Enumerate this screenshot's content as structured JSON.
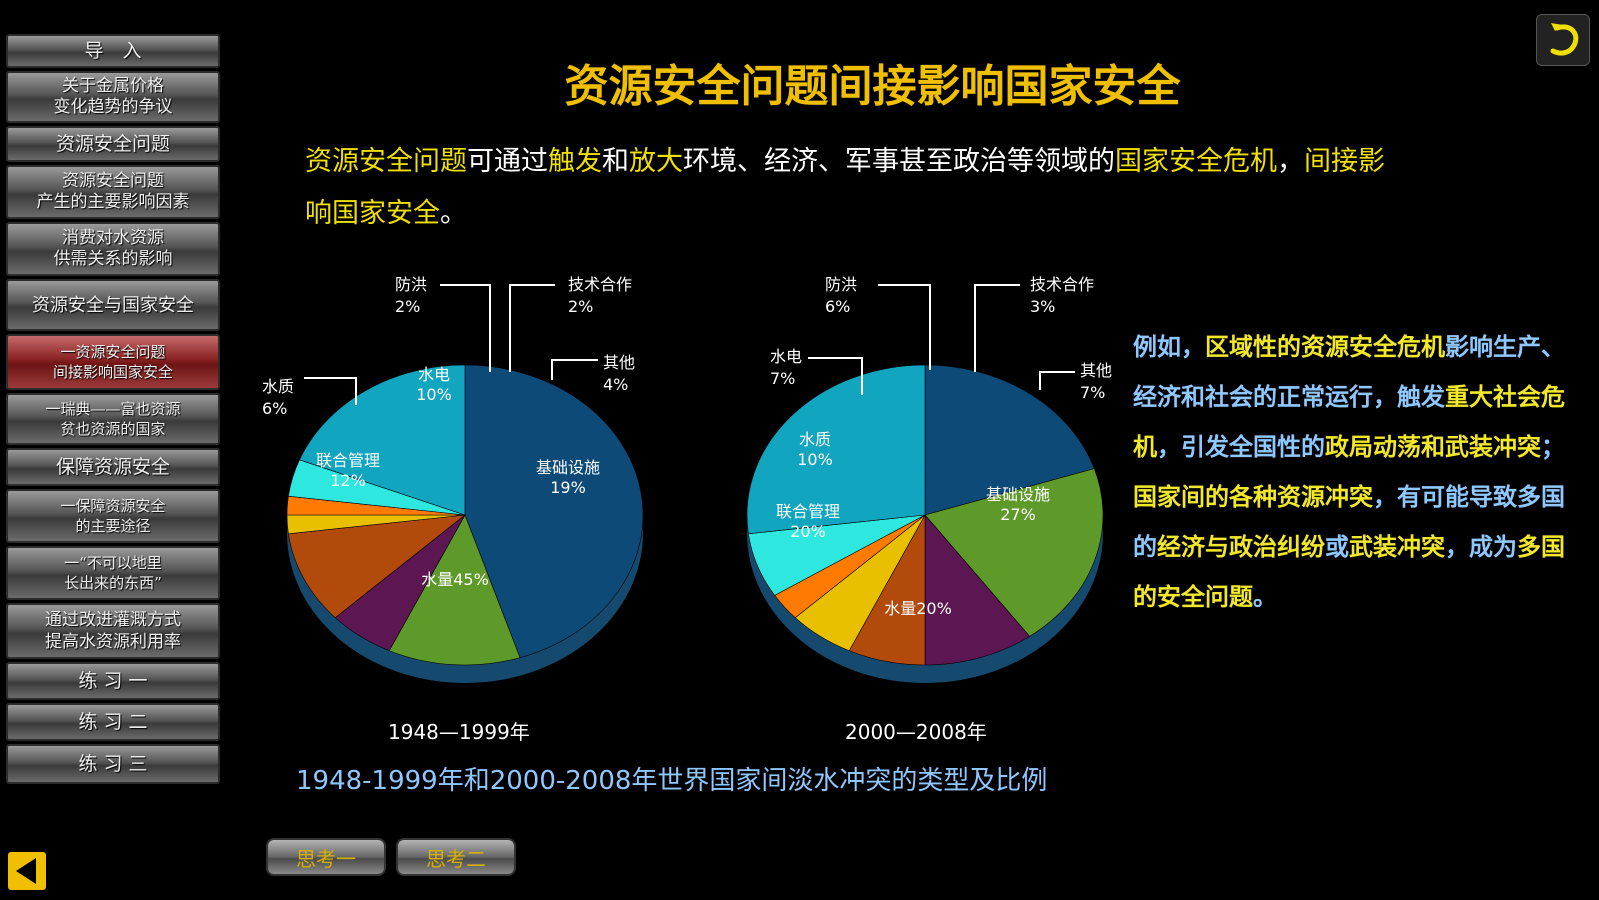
{
  "sidebar": {
    "items": [
      {
        "label": "导　入"
      },
      {
        "label": "关于金属价格\n变化趋势的争议"
      },
      {
        "label": "资源安全问题"
      },
      {
        "label": "资源安全问题\n产生的主要影响因素"
      },
      {
        "label": "消费对水资源\n供需关系的影响"
      },
      {
        "label": "资源安全与国家安全"
      },
      {
        "label": "一资源安全问题\n间接影响国家安全",
        "active": true
      },
      {
        "label": "一瑞典——富也资源\n贫也资源的国家"
      },
      {
        "label": "保障资源安全"
      },
      {
        "label": "一保障资源安全\n的主要途径"
      },
      {
        "label": "一“不可以地里\n长出来的东西”"
      },
      {
        "label": "通过改进灌溉方式\n提高水资源利用率"
      },
      {
        "label": "练 习 一"
      },
      {
        "label": "练 习 二"
      },
      {
        "label": "练 习 三"
      }
    ]
  },
  "title": "资源安全问题间接影响国家安全",
  "intro": {
    "p1": "资源安全问题",
    "p2": "可通过",
    "p3": "触发",
    "p4": "和",
    "p5": "放大",
    "p6": "环境、经济、军事甚至政治等领域的",
    "p7": "国家安全危机",
    "p8": "，",
    "p9": "间接影响国家安全",
    "p10": "。"
  },
  "right": {
    "a1": "例如，",
    "a2": "区域性的资源安全危机",
    "a3": "影响生产、经济和社会的正常运行，触发",
    "a4": "重大社会危机",
    "a5": "，引发全国性的",
    "a6": "政局动荡和武装冲突",
    "a7": "；",
    "b1": "国家间的各种资源冲突",
    "b2": "，有可能导致多国的",
    "b3": "经济与政治纠纷",
    "b4": "或",
    "b5": "武装冲突",
    "b6": "，成为",
    "b7": "多国的安全问题",
    "b8": "。"
  },
  "chart_caption": "1948-1999年和2000-2008年世界国家间淡水冲突的类型及比例",
  "buttons": {
    "think1": "思考一",
    "think2": "思考二"
  },
  "icons": {
    "back": "return-arrow-icon",
    "prev": "left-triangle-icon"
  },
  "chart_data": [
    {
      "type": "pie",
      "subtitle": "1948—1999年",
      "slices": [
        {
          "label": "水量",
          "value": 45,
          "text": "水量45%",
          "color": "#0e4a78"
        },
        {
          "label": "联合管理",
          "value": 12,
          "text": "12%",
          "color": "#5e9a2a"
        },
        {
          "label": "水质",
          "value": 6,
          "text": "6%",
          "color": "#5c1652"
        },
        {
          "label": "水电",
          "value": 10,
          "text": "10%",
          "color": "#b24a0c"
        },
        {
          "label": "防洪",
          "value": 2,
          "text": "2%",
          "color": "#e8c000"
        },
        {
          "label": "技术合作",
          "value": 2,
          "text": "2%",
          "color": "#ff7a00"
        },
        {
          "label": "其他",
          "value": 4,
          "text": "4%",
          "color": "#2ee8e0"
        },
        {
          "label": "基础设施",
          "value": 19,
          "text": "19%",
          "color": "#11a5c0"
        }
      ]
    },
    {
      "type": "pie",
      "subtitle": "2000—2008年",
      "slices": [
        {
          "label": "水量",
          "value": 20,
          "text": "水量20%",
          "color": "#0e4a78"
        },
        {
          "label": "联合管理",
          "value": 20,
          "text": "20%",
          "color": "#5e9a2a"
        },
        {
          "label": "水质",
          "value": 10,
          "text": "10%",
          "color": "#5c1652"
        },
        {
          "label": "水电",
          "value": 7,
          "text": "7%",
          "color": "#b24a0c"
        },
        {
          "label": "防洪",
          "value": 6,
          "text": "6%",
          "color": "#e8c000"
        },
        {
          "label": "技术合作",
          "value": 3,
          "text": "3%",
          "color": "#ff7a00"
        },
        {
          "label": "其他",
          "value": 7,
          "text": "7%",
          "color": "#2ee8e0"
        },
        {
          "label": "基础设施",
          "value": 27,
          "text": "27%",
          "color": "#11a5c0"
        }
      ]
    }
  ]
}
